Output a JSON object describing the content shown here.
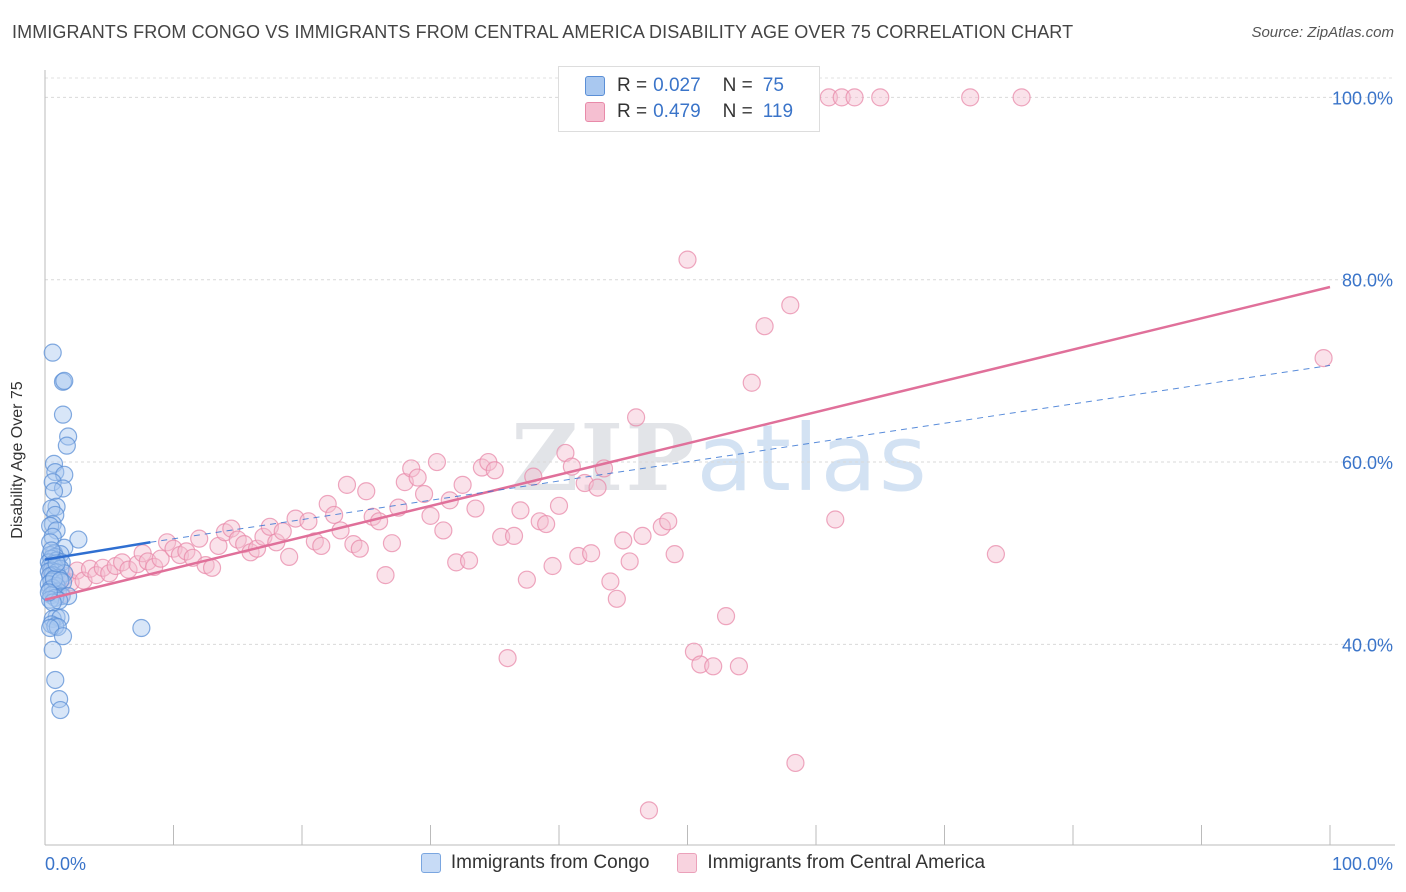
{
  "title": "IMMIGRANTS FROM CONGO VS IMMIGRANTS FROM CENTRAL AMERICA DISABILITY AGE OVER 75 CORRELATION CHART",
  "source": "Source: ZipAtlas.com",
  "watermark": "ZIPatlas",
  "colors": {
    "blue_fill": "#a9c8f0",
    "blue_stroke": "#5b8fd6",
    "blue_line": "#2f6fd1",
    "pink_fill": "#f5bfd1",
    "pink_stroke": "#e88aa9",
    "pink_line": "#e0709a",
    "axis_label": "#3a74c9"
  },
  "legend_box": {
    "rows": [
      {
        "r_label": "R =",
        "r_value": "0.027",
        "n_label": "N =",
        "n_value": "75"
      },
      {
        "r_label": "R =",
        "r_value": "0.479",
        "n_label": "N =",
        "n_value": "119"
      }
    ]
  },
  "chart_data": {
    "type": "scatter",
    "title": "IMMIGRANTS FROM CONGO VS IMMIGRANTS FROM CENTRAL AMERICA DISABILITY AGE OVER 75 CORRELATION CHART",
    "xlabel": "",
    "ylabel": "Disability Age Over 75",
    "xlim": [
      0,
      100
    ],
    "ylim": [
      18,
      103
    ],
    "x_tick_labels": [
      "0.0%",
      "100.0%"
    ],
    "y_ticks": [
      40,
      60,
      80,
      100
    ],
    "y_tick_labels": [
      "40.0%",
      "60.0%",
      "80.0%",
      "100.0%"
    ],
    "grid": true,
    "legend_placement": "bottom",
    "series": [
      {
        "name": "Immigrants from Congo",
        "color": "#5b8fd6",
        "trend": {
          "x": [
            0,
            8.2
          ],
          "y": [
            49.3,
            51.2
          ]
        },
        "trend_ext": {
          "x": [
            8.2,
            100
          ],
          "y": [
            51.2,
            70.6
          ]
        },
        "points": [
          [
            0.6,
            72.0
          ],
          [
            1.4,
            68.8
          ],
          [
            1.5,
            68.9
          ],
          [
            1.4,
            65.2
          ],
          [
            1.8,
            62.8
          ],
          [
            1.7,
            61.8
          ],
          [
            0.7,
            59.8
          ],
          [
            0.8,
            58.9
          ],
          [
            1.5,
            58.6
          ],
          [
            0.6,
            57.8
          ],
          [
            1.4,
            57.1
          ],
          [
            0.7,
            56.8
          ],
          [
            0.9,
            55.1
          ],
          [
            0.5,
            54.9
          ],
          [
            0.8,
            54.2
          ],
          [
            0.6,
            53.2
          ],
          [
            0.4,
            53.0
          ],
          [
            0.9,
            52.5
          ],
          [
            0.6,
            51.8
          ],
          [
            0.4,
            51.2
          ],
          [
            2.6,
            51.5
          ],
          [
            1.5,
            50.6
          ],
          [
            0.7,
            50.0
          ],
          [
            1.2,
            49.9
          ],
          [
            0.4,
            49.8
          ],
          [
            0.8,
            49.6
          ],
          [
            0.5,
            49.4
          ],
          [
            0.9,
            49.2
          ],
          [
            0.3,
            49.0
          ],
          [
            1.3,
            49.0
          ],
          [
            0.6,
            48.8
          ],
          [
            0.4,
            48.6
          ],
          [
            0.8,
            48.4
          ],
          [
            1.2,
            48.3
          ],
          [
            0.5,
            48.1
          ],
          [
            0.3,
            48.0
          ],
          [
            0.9,
            47.9
          ],
          [
            1.5,
            47.8
          ],
          [
            0.6,
            47.6
          ],
          [
            0.4,
            47.5
          ],
          [
            1.1,
            47.3
          ],
          [
            0.7,
            47.1
          ],
          [
            0.5,
            46.9
          ],
          [
            1.4,
            46.8
          ],
          [
            0.3,
            46.6
          ],
          [
            0.9,
            46.4
          ],
          [
            0.6,
            46.2
          ],
          [
            0.4,
            46.0
          ],
          [
            1.0,
            45.8
          ],
          [
            0.7,
            45.6
          ],
          [
            0.5,
            45.4
          ],
          [
            1.3,
            45.3
          ],
          [
            1.8,
            45.3
          ],
          [
            0.8,
            45.1
          ],
          [
            0.4,
            44.9
          ],
          [
            1.1,
            44.8
          ],
          [
            0.6,
            44.6
          ],
          [
            0.9,
            43.0
          ],
          [
            0.6,
            42.8
          ],
          [
            1.2,
            42.9
          ],
          [
            0.5,
            42.2
          ],
          [
            0.8,
            42.0
          ],
          [
            1.0,
            41.9
          ],
          [
            0.4,
            41.8
          ],
          [
            7.5,
            41.8
          ],
          [
            1.4,
            40.9
          ],
          [
            0.6,
            39.4
          ],
          [
            0.8,
            36.1
          ],
          [
            1.1,
            34.0
          ],
          [
            1.2,
            32.8
          ],
          [
            0.7,
            47.2
          ],
          [
            0.9,
            48.9
          ],
          [
            0.5,
            50.3
          ],
          [
            1.2,
            47.0
          ],
          [
            0.3,
            45.7
          ]
        ]
      },
      {
        "name": "Immigrants from Central America",
        "color": "#e88aa9",
        "trend": {
          "x": [
            0,
            100
          ],
          "y": [
            44.9,
            79.2
          ]
        },
        "points": [
          [
            0.5,
            48.0
          ],
          [
            0.8,
            47.2
          ],
          [
            1.0,
            46.5
          ],
          [
            1.3,
            45.5
          ],
          [
            1.6,
            47.5
          ],
          [
            2.0,
            46.8
          ],
          [
            2.5,
            48.1
          ],
          [
            3.0,
            47.0
          ],
          [
            3.5,
            48.3
          ],
          [
            4.0,
            47.6
          ],
          [
            4.5,
            48.4
          ],
          [
            5.0,
            47.8
          ],
          [
            5.5,
            48.6
          ],
          [
            6.0,
            49.0
          ],
          [
            6.5,
            48.2
          ],
          [
            7.2,
            48.8
          ],
          [
            7.6,
            50.0
          ],
          [
            8.0,
            49.1
          ],
          [
            8.5,
            48.5
          ],
          [
            9.0,
            49.4
          ],
          [
            9.5,
            51.2
          ],
          [
            10.0,
            50.5
          ],
          [
            10.5,
            49.8
          ],
          [
            11.0,
            50.2
          ],
          [
            11.5,
            49.5
          ],
          [
            12.0,
            51.6
          ],
          [
            12.5,
            48.7
          ],
          [
            13.0,
            48.4
          ],
          [
            13.5,
            50.8
          ],
          [
            14.0,
            52.3
          ],
          [
            14.5,
            52.7
          ],
          [
            15.0,
            51.5
          ],
          [
            15.5,
            51.0
          ],
          [
            16.0,
            50.1
          ],
          [
            16.5,
            50.5
          ],
          [
            17.0,
            51.8
          ],
          [
            17.5,
            52.9
          ],
          [
            18.0,
            51.2
          ],
          [
            18.5,
            52.4
          ],
          [
            19.0,
            49.6
          ],
          [
            19.5,
            53.8
          ],
          [
            20.5,
            53.5
          ],
          [
            21.0,
            51.3
          ],
          [
            21.5,
            50.8
          ],
          [
            22.0,
            55.4
          ],
          [
            22.5,
            54.2
          ],
          [
            23.0,
            52.5
          ],
          [
            23.5,
            57.5
          ],
          [
            24.0,
            51.0
          ],
          [
            24.5,
            50.5
          ],
          [
            25.0,
            56.8
          ],
          [
            25.5,
            54.0
          ],
          [
            26.0,
            53.5
          ],
          [
            26.5,
            47.6
          ],
          [
            27.0,
            51.1
          ],
          [
            27.5,
            55.0
          ],
          [
            28.0,
            57.8
          ],
          [
            28.5,
            59.3
          ],
          [
            29.0,
            58.3
          ],
          [
            29.5,
            56.5
          ],
          [
            30.0,
            54.1
          ],
          [
            30.5,
            60.0
          ],
          [
            31.0,
            52.5
          ],
          [
            31.5,
            55.8
          ],
          [
            32.0,
            49.0
          ],
          [
            32.5,
            57.5
          ],
          [
            33.0,
            49.2
          ],
          [
            33.5,
            54.9
          ],
          [
            34.0,
            59.4
          ],
          [
            34.5,
            60.0
          ],
          [
            35.0,
            59.1
          ],
          [
            35.5,
            51.8
          ],
          [
            36.0,
            38.5
          ],
          [
            36.5,
            51.9
          ],
          [
            37.0,
            54.7
          ],
          [
            37.5,
            47.1
          ],
          [
            38.0,
            58.4
          ],
          [
            38.5,
            53.5
          ],
          [
            39.0,
            53.2
          ],
          [
            39.5,
            48.6
          ],
          [
            40.0,
            55.2
          ],
          [
            40.5,
            61.0
          ],
          [
            41.0,
            59.5
          ],
          [
            41.5,
            49.7
          ],
          [
            42.0,
            57.7
          ],
          [
            42.5,
            50.0
          ],
          [
            43.0,
            57.2
          ],
          [
            43.5,
            59.3
          ],
          [
            44.0,
            46.9
          ],
          [
            44.5,
            45.0
          ],
          [
            45.0,
            51.4
          ],
          [
            45.5,
            49.1
          ],
          [
            46.0,
            64.9
          ],
          [
            46.5,
            51.9
          ],
          [
            47.0,
            21.8
          ],
          [
            48.0,
            52.9
          ],
          [
            48.5,
            53.5
          ],
          [
            49.0,
            49.9
          ],
          [
            50.0,
            82.2
          ],
          [
            50.5,
            39.2
          ],
          [
            51.0,
            37.8
          ],
          [
            52.0,
            37.6
          ],
          [
            53.0,
            43.1
          ],
          [
            54.0,
            37.6
          ],
          [
            55.0,
            68.7
          ],
          [
            56.0,
            74.9
          ],
          [
            58.0,
            77.2
          ],
          [
            58.4,
            27.0
          ],
          [
            59.0,
            100.0
          ],
          [
            61.0,
            100.0
          ],
          [
            62.0,
            100.0
          ],
          [
            63.0,
            100.0
          ],
          [
            65.0,
            100.0
          ],
          [
            61.5,
            53.7
          ],
          [
            72.0,
            100.0
          ],
          [
            74.0,
            49.9
          ],
          [
            76.0,
            100.0
          ],
          [
            99.5,
            71.4
          ]
        ]
      }
    ]
  }
}
